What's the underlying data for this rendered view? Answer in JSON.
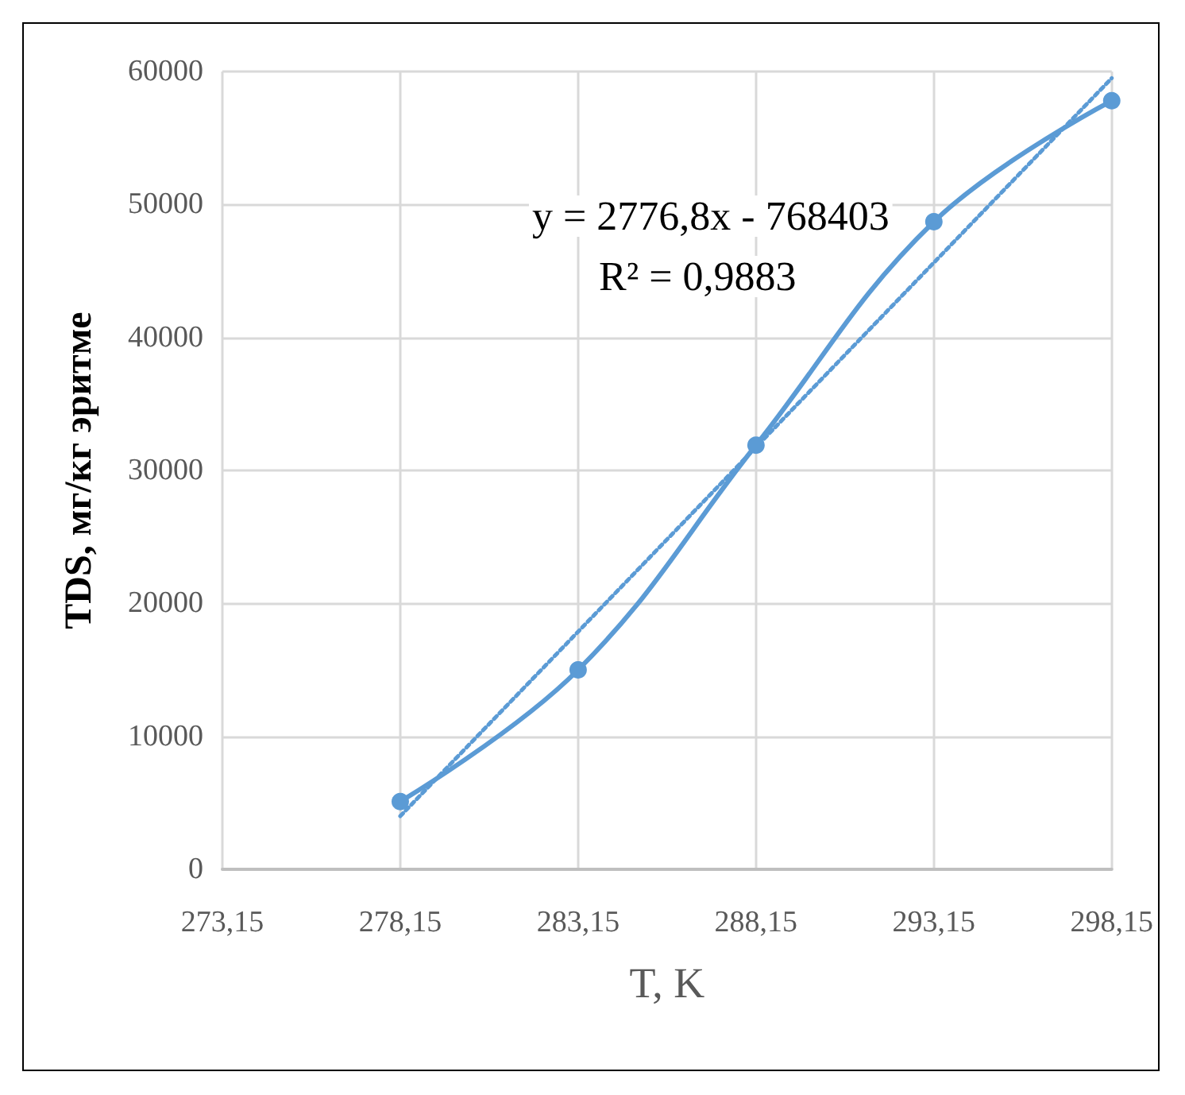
{
  "chart_data": {
    "type": "line",
    "xlabel": "T, K",
    "ylabel": "TDS, мг/кг эритме",
    "x": [
      278.15,
      283.15,
      288.15,
      293.15,
      298.15
    ],
    "series": [
      {
        "color": "#5b9bd5",
        "values": [
          5100,
          15000,
          31900,
          48700,
          57800
        ],
        "marker": "circle",
        "line_style": "solid"
      },
      {
        "color": "#5b9bd5",
        "x": [
          278.15,
          298.15
        ],
        "values": [
          4000,
          59500
        ],
        "marker": "none",
        "line_style": "dotted"
      }
    ],
    "xlim": [
      273.15,
      298.15
    ],
    "xticks": [
      {
        "value": 273.15,
        "label": "273,15"
      },
      {
        "value": 278.15,
        "label": "278,15"
      },
      {
        "value": 283.15,
        "label": "283,15"
      },
      {
        "value": 288.15,
        "label": "288,15"
      },
      {
        "value": 293.15,
        "label": "293,15"
      },
      {
        "value": 298.15,
        "label": "298,15"
      }
    ],
    "ylim": [
      0,
      60000
    ],
    "yticks": [
      0,
      10000,
      20000,
      30000,
      40000,
      50000,
      60000
    ],
    "grid": true,
    "annotations": [
      "y = 2776,8x - 768403",
      "R² = 0,9883"
    ]
  }
}
